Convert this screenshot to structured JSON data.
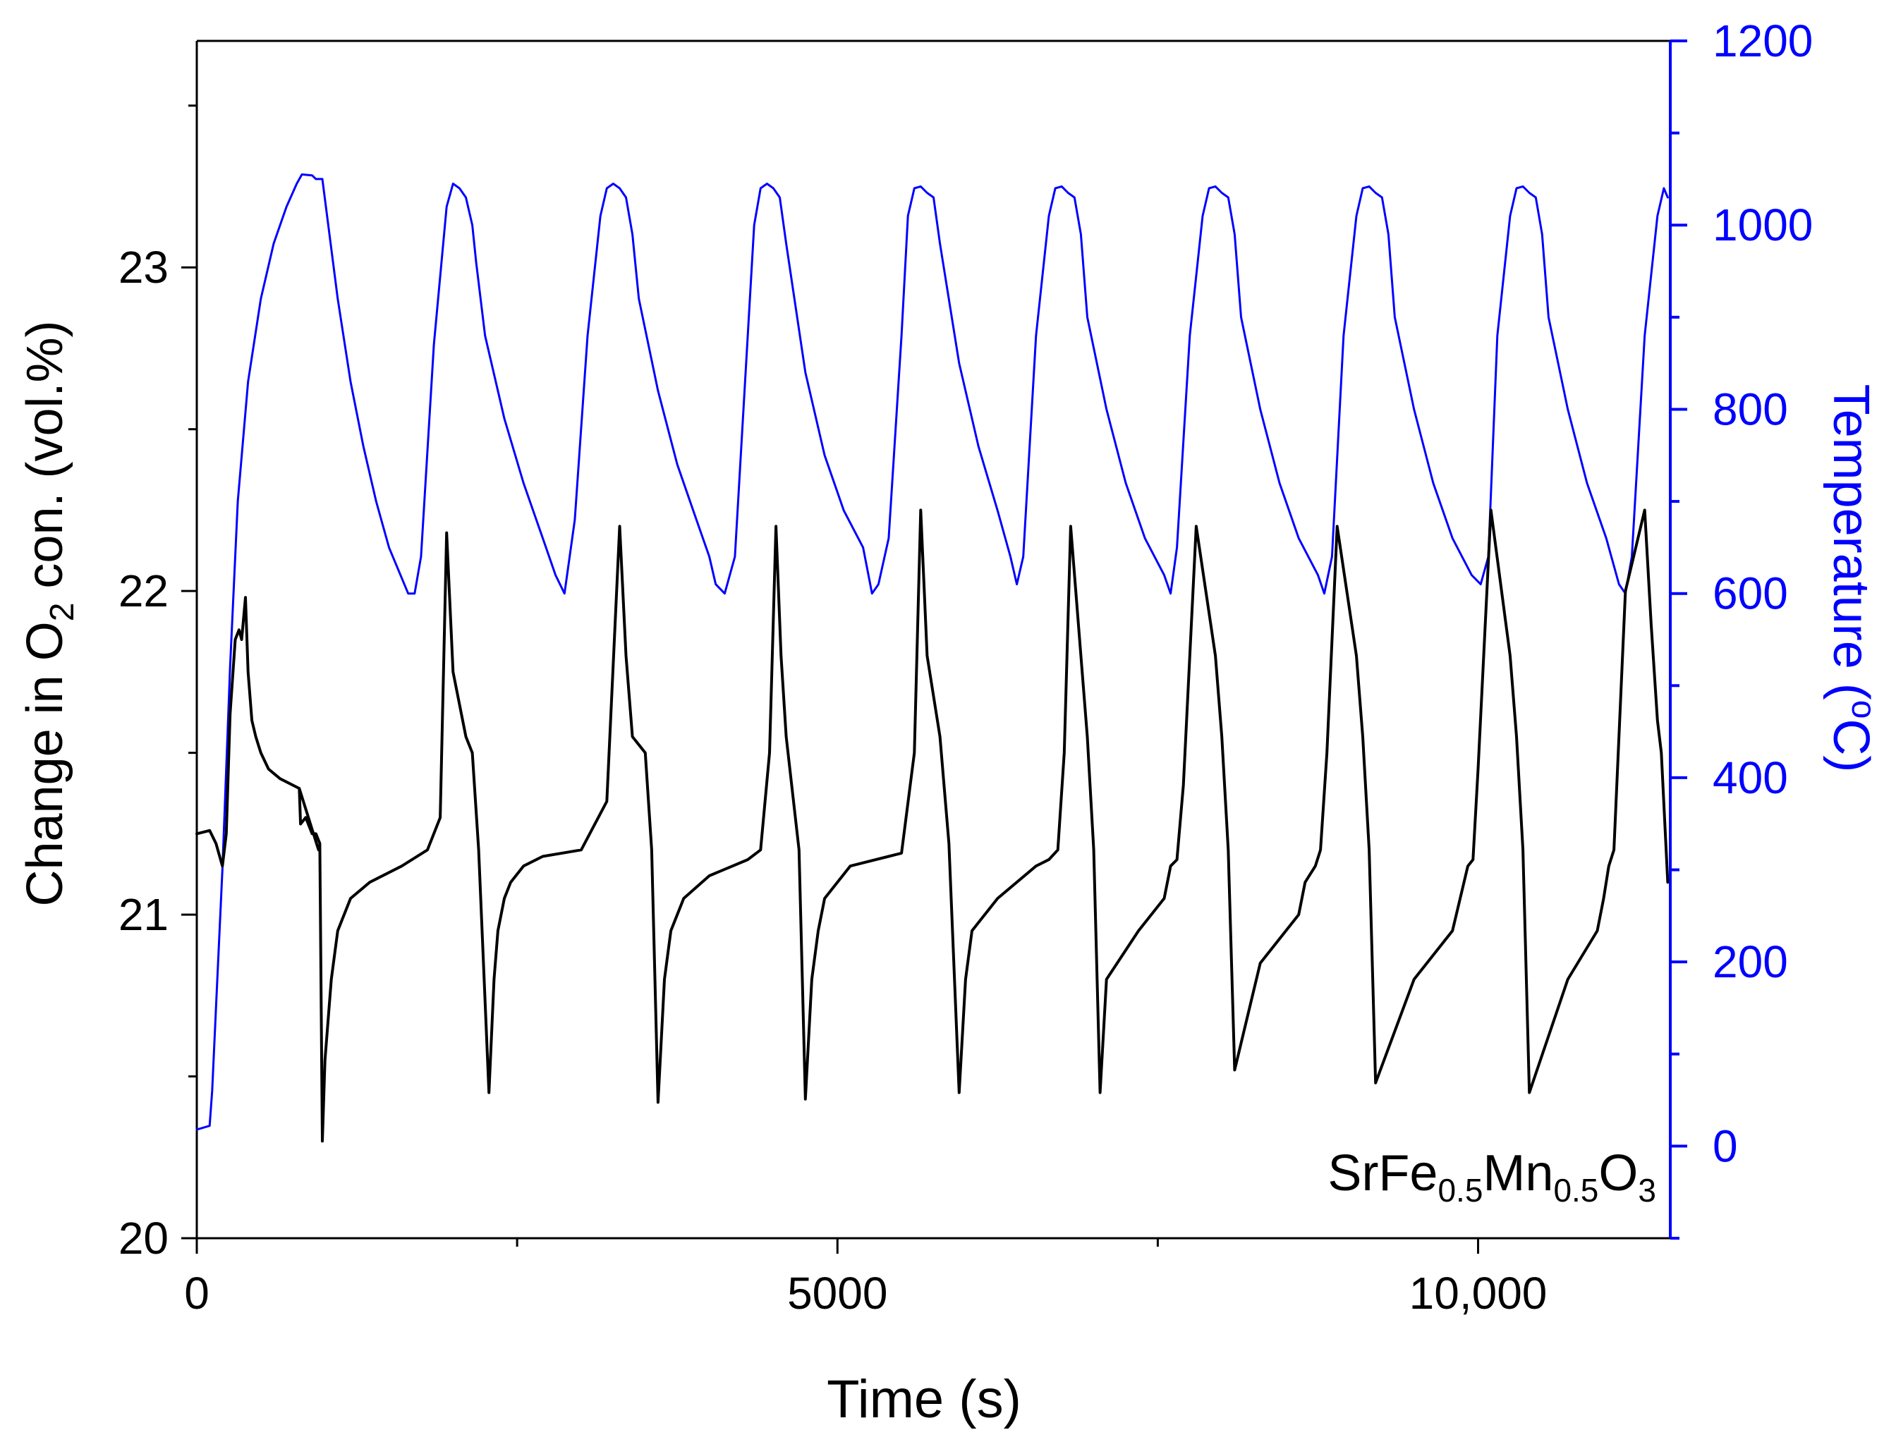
{
  "chart_data": {
    "type": "line",
    "title": "",
    "annotation": {
      "prefix": "SrFe",
      "sub1": "0.5",
      "mid": "Mn",
      "sub2": "0.5",
      "mid2": "O",
      "sub3": "3"
    },
    "xlabel": "Time (s)",
    "ylabel_left": {
      "prefix": "Change in O",
      "sub": "2",
      "suffix": " con. (vol.%)"
    },
    "ylabel_right": {
      "prefix": "Temperature (",
      "sup": "o",
      "suffix": "C)"
    },
    "xlim": [
      0,
      11500
    ],
    "ylim_left": [
      20.0,
      23.7
    ],
    "ylim_right": [
      -100,
      1200
    ],
    "x_ticks": [
      {
        "value": 0,
        "label": "0"
      },
      {
        "value": 5000,
        "label": "5000"
      },
      {
        "value": 10000,
        "label": "10,000"
      }
    ],
    "y_left_ticks": [
      {
        "value": 20,
        "label": "20"
      },
      {
        "value": 21,
        "label": "21"
      },
      {
        "value": 22,
        "label": "22"
      },
      {
        "value": 23,
        "label": "23"
      }
    ],
    "y_right_ticks": [
      {
        "value": 0,
        "label": "0"
      },
      {
        "value": 200,
        "label": "200"
      },
      {
        "value": 400,
        "label": "400"
      },
      {
        "value": 600,
        "label": "600"
      },
      {
        "value": 800,
        "label": "800"
      },
      {
        "value": 1000,
        "label": "1000"
      },
      {
        "value": 1200,
        "label": "1200"
      }
    ],
    "colors": {
      "o2": "#000000",
      "temperature": "#0000ff",
      "axis": "#000000",
      "right_axis": "#0000ff"
    },
    "series": [
      {
        "name": "O2 concentration",
        "axis": "left",
        "color": "#000000",
        "x": [
          0,
          100,
          150,
          200,
          230,
          260,
          300,
          330,
          350,
          380,
          400,
          430,
          460,
          500,
          560,
          650,
          800,
          950,
          800,
          810,
          850,
          900,
          930,
          960,
          980,
          1000,
          1050,
          1100,
          1200,
          1350,
          1600,
          1800,
          1900,
          1950,
          2000,
          2100,
          2150,
          2200,
          2280,
          2320,
          2350,
          2400,
          2450,
          2550,
          2700,
          3000,
          3200,
          3300,
          3350,
          3400,
          3500,
          3550,
          3600,
          3650,
          3700,
          3800,
          4000,
          4300,
          4400,
          4470,
          4520,
          4560,
          4600,
          4700,
          4750,
          4800,
          4850,
          4900,
          5100,
          5400,
          5500,
          5600,
          5650,
          5700,
          5800,
          5870,
          5950,
          6000,
          6050,
          6250,
          6550,
          6650,
          6720,
          6770,
          6820,
          6900,
          6950,
          7000,
          7050,
          7100,
          7350,
          7550,
          7600,
          7650,
          7700,
          7800,
          7950,
          8000,
          8050,
          8100,
          8300,
          8600,
          8650,
          8730,
          8770,
          8820,
          8900,
          9050,
          9100,
          9150,
          9200,
          9500,
          9800,
          9860,
          9920,
          9960,
          10000,
          10100,
          10250,
          10300,
          10350,
          10400,
          10700,
          10930,
          10980,
          11020,
          11060,
          11150,
          11300,
          11350,
          11400,
          11430,
          11480
        ],
        "y": [
          21.25,
          21.26,
          21.22,
          21.15,
          21.25,
          21.62,
          21.85,
          21.88,
          21.85,
          21.98,
          21.75,
          21.6,
          21.55,
          21.5,
          21.45,
          21.42,
          21.39,
          21.2,
          21.39,
          21.28,
          21.3,
          21.25,
          21.25,
          21.22,
          20.3,
          20.55,
          20.8,
          20.95,
          21.05,
          21.1,
          21.15,
          21.2,
          21.3,
          22.18,
          21.75,
          21.55,
          21.5,
          21.2,
          20.45,
          20.8,
          20.95,
          21.05,
          21.1,
          21.15,
          21.18,
          21.2,
          21.35,
          22.2,
          21.8,
          21.55,
          21.5,
          21.2,
          20.42,
          20.8,
          20.95,
          21.05,
          21.12,
          21.17,
          21.2,
          21.5,
          22.2,
          21.8,
          21.55,
          21.2,
          20.43,
          20.8,
          20.95,
          21.05,
          21.15,
          21.18,
          21.19,
          21.5,
          22.25,
          21.8,
          21.55,
          21.22,
          20.45,
          20.8,
          20.95,
          21.05,
          21.15,
          21.17,
          21.2,
          21.5,
          22.2,
          21.8,
          21.55,
          21.2,
          20.45,
          20.8,
          20.95,
          21.05,
          21.15,
          21.17,
          21.4,
          22.2,
          21.8,
          21.55,
          21.2,
          20.52,
          20.85,
          21.0,
          21.1,
          21.15,
          21.2,
          21.5,
          22.2,
          21.8,
          21.55,
          21.2,
          20.48,
          20.8,
          20.95,
          21.05,
          21.15,
          21.17,
          21.45,
          22.25,
          21.8,
          21.55,
          21.2,
          20.45,
          20.8,
          20.95,
          21.05,
          21.15,
          21.2,
          22.0,
          22.25,
          21.9,
          21.6,
          21.5,
          21.1
        ]
      },
      {
        "name": "Temperature",
        "axis": "right",
        "color": "#0000ff",
        "x": [
          0,
          100,
          120,
          150,
          200,
          260,
          320,
          400,
          500,
          600,
          700,
          780,
          820,
          900,
          930,
          980,
          1100,
          1200,
          1300,
          1400,
          1500,
          1650,
          1700,
          1750,
          1850,
          1950,
          2000,
          2050,
          2100,
          2150,
          2180,
          2250,
          2400,
          2550,
          2700,
          2800,
          2870,
          2950,
          3050,
          3150,
          3200,
          3250,
          3300,
          3350,
          3400,
          3450,
          3600,
          3750,
          3900,
          4000,
          4050,
          4120,
          4200,
          4300,
          4350,
          4400,
          4450,
          4500,
          4550,
          4600,
          4750,
          4900,
          5050,
          5200,
          5270,
          5320,
          5400,
          5500,
          5550,
          5600,
          5650,
          5700,
          5750,
          5800,
          5950,
          6100,
          6250,
          6350,
          6400,
          6450,
          6550,
          6650,
          6700,
          6750,
          6800,
          6850,
          6900,
          6950,
          7100,
          7250,
          7400,
          7550,
          7600,
          7650,
          7750,
          7850,
          7900,
          7950,
          8000,
          8050,
          8100,
          8150,
          8300,
          8450,
          8600,
          8750,
          8800,
          8860,
          8950,
          9050,
          9100,
          9150,
          9200,
          9250,
          9300,
          9350,
          9500,
          9650,
          9800,
          9950,
          10020,
          10080,
          10150,
          10250,
          10300,
          10350,
          10400,
          10450,
          10500,
          10550,
          10700,
          10850,
          11000,
          11100,
          11150,
          11200,
          11300,
          11400,
          11450,
          11480
        ],
        "y": [
          18,
          22,
          60,
          150,
          300,
          520,
          700,
          830,
          920,
          980,
          1020,
          1045,
          1055,
          1054,
          1050,
          1050,
          920,
          830,
          760,
          700,
          650,
          600,
          600,
          640,
          870,
          1020,
          1045,
          1040,
          1030,
          1000,
          960,
          880,
          790,
          720,
          660,
          620,
          600,
          680,
          880,
          1010,
          1040,
          1045,
          1040,
          1030,
          990,
          920,
          820,
          740,
          680,
          640,
          610,
          600,
          640,
          880,
          1000,
          1040,
          1045,
          1040,
          1030,
          980,
          840,
          750,
          690,
          650,
          600,
          610,
          660,
          880,
          1010,
          1040,
          1042,
          1035,
          1030,
          980,
          850,
          760,
          690,
          640,
          610,
          640,
          880,
          1010,
          1040,
          1042,
          1035,
          1030,
          990,
          900,
          800,
          720,
          660,
          620,
          600,
          650,
          880,
          1010,
          1040,
          1042,
          1035,
          1030,
          990,
          900,
          800,
          720,
          660,
          620,
          600,
          640,
          880,
          1010,
          1040,
          1042,
          1035,
          1030,
          990,
          900,
          800,
          720,
          660,
          620,
          610,
          640,
          880,
          1010,
          1040,
          1042,
          1035,
          1030,
          990,
          900,
          800,
          720,
          660,
          610,
          600,
          640,
          880,
          1010,
          1040,
          1030
        ]
      }
    ]
  }
}
